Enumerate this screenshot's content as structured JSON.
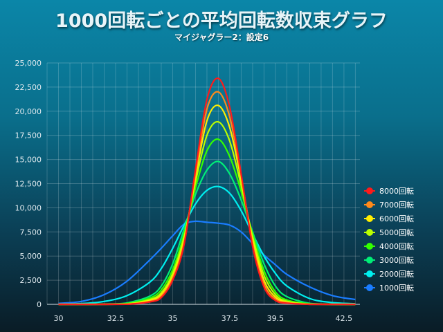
{
  "title": "1000回転ごとの平均回転数収束グラフ",
  "subtitle": "マイジャグラー2：設定6",
  "chart_data": {
    "type": "line",
    "title": "1000回転ごとの平均回転数収束グラフ",
    "subtitle": "マイジャグラー2：設定6",
    "xlabel": "",
    "ylabel": "",
    "xlim": [
      29.5,
      43.2
    ],
    "ylim": [
      0,
      25000
    ],
    "x_ticks": [
      30,
      32.5,
      35,
      37.5,
      39.5,
      42.5
    ],
    "x_tick_labels": [
      "30",
      "32.5",
      "35",
      "37.5",
      "39.5",
      "42.5"
    ],
    "y_ticks": [
      0,
      2500,
      5000,
      7500,
      10000,
      12500,
      15000,
      17500,
      20000,
      22500,
      25000
    ],
    "y_tick_labels": [
      "0",
      "2,500",
      "5,000",
      "7,500",
      "10,000",
      "12,500",
      "15,000",
      "17,500",
      "20,000",
      "22,500",
      "25,000"
    ],
    "grid": true,
    "legend_position": "right",
    "series": [
      {
        "name": "8000回転",
        "color": "#ff1a1a",
        "x": [
          30,
          31,
          32,
          33,
          34,
          34.5,
          35,
          35.5,
          36,
          36.5,
          37,
          37.5,
          38,
          38.5,
          39,
          39.5,
          40,
          41,
          42,
          43
        ],
        "values": [
          0,
          0,
          0,
          5,
          250,
          700,
          2500,
          6200,
          14000,
          21200,
          23400,
          20400,
          13500,
          6000,
          1800,
          400,
          120,
          0,
          0,
          0
        ]
      },
      {
        "name": "7000回転",
        "color": "#ff8a1a",
        "x": [
          30,
          31,
          32,
          33,
          34,
          34.5,
          35,
          35.5,
          36,
          36.5,
          37,
          37.5,
          38,
          38.5,
          39,
          39.5,
          40,
          41,
          42,
          43
        ],
        "values": [
          0,
          0,
          0,
          10,
          300,
          850,
          2700,
          6400,
          13600,
          20200,
          22000,
          19400,
          13300,
          6300,
          2100,
          550,
          170,
          0,
          0,
          0
        ]
      },
      {
        "name": "6000回転",
        "color": "#ffee00",
        "x": [
          30,
          31,
          32,
          33,
          34,
          34.5,
          35,
          35.5,
          36,
          36.5,
          37,
          37.5,
          38,
          38.5,
          39,
          39.5,
          40,
          41,
          42,
          43
        ],
        "values": [
          0,
          0,
          0,
          20,
          400,
          1000,
          2900,
          6700,
          13200,
          19000,
          20600,
          18300,
          12900,
          6700,
          2500,
          750,
          220,
          10,
          0,
          0
        ]
      },
      {
        "name": "5000回転",
        "color": "#bbff00",
        "x": [
          30,
          31,
          32,
          33,
          34,
          34.5,
          35,
          35.5,
          36,
          36.5,
          37,
          37.5,
          38,
          38.5,
          39,
          39.5,
          40,
          41,
          42,
          43
        ],
        "values": [
          0,
          0,
          5,
          40,
          500,
          1200,
          3200,
          7000,
          12700,
          17500,
          18900,
          16900,
          12300,
          7000,
          3000,
          1000,
          320,
          20,
          0,
          0
        ]
      },
      {
        "name": "4000回転",
        "color": "#33ff00",
        "x": [
          30,
          31,
          32,
          33,
          34,
          34.5,
          35,
          35.5,
          36,
          36.5,
          37,
          37.5,
          38,
          38.5,
          39,
          39.5,
          40,
          41,
          42,
          43
        ],
        "values": [
          0,
          0,
          10,
          80,
          650,
          1500,
          3600,
          7300,
          12100,
          15900,
          17100,
          15300,
          11700,
          7300,
          3500,
          1300,
          450,
          40,
          0,
          0
        ]
      },
      {
        "name": "3000回転",
        "color": "#00ee77",
        "x": [
          30,
          31,
          32,
          33,
          34,
          34.5,
          35,
          35.5,
          36,
          36.5,
          37,
          37.5,
          38,
          38.5,
          39,
          39.5,
          40,
          41,
          42,
          43
        ],
        "values": [
          0,
          5,
          25,
          150,
          850,
          1900,
          4200,
          7800,
          11400,
          13900,
          14800,
          13500,
          10800,
          7500,
          4200,
          1900,
          800,
          100,
          10,
          0
        ]
      },
      {
        "name": "2000回転",
        "color": "#00f0f0",
        "x": [
          30,
          31,
          32,
          33,
          34,
          34.5,
          35,
          35.5,
          36,
          36.5,
          37,
          37.5,
          38,
          38.5,
          39,
          39.5,
          40,
          41,
          42,
          43
        ],
        "values": [
          20,
          80,
          300,
          900,
          2300,
          3700,
          5800,
          8200,
          10400,
          11800,
          12200,
          11500,
          9700,
          7300,
          5000,
          3200,
          1900,
          600,
          180,
          60
        ]
      },
      {
        "name": "1000回転",
        "color": "#1a7dff",
        "x": [
          30,
          31,
          32,
          33,
          34,
          34.5,
          35,
          35.5,
          36,
          36.5,
          37,
          37.5,
          38,
          38.5,
          39,
          39.5,
          40,
          41,
          42,
          43
        ],
        "values": [
          100,
          300,
          1000,
          2400,
          4600,
          5800,
          7100,
          8300,
          8600,
          8500,
          8400,
          8200,
          7500,
          6300,
          5100,
          4100,
          3100,
          1800,
          900,
          500
        ]
      }
    ]
  }
}
